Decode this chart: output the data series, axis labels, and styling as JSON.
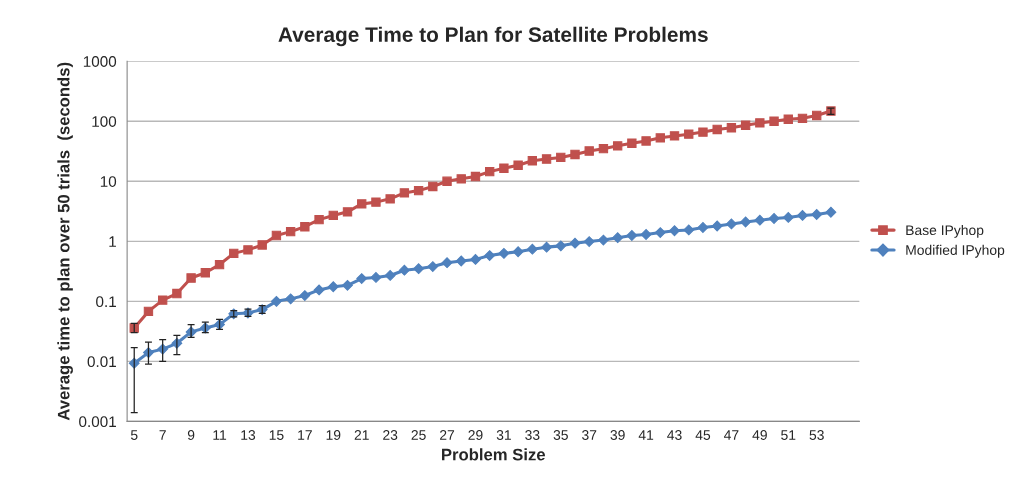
{
  "chart_data": {
    "type": "line",
    "title": "Average Time to Plan for Satellite Problems",
    "xlabel": "Problem Size",
    "ylabel": "Average time to plan over 50 trials  (seconds)",
    "categories": [
      "5",
      null,
      "7",
      null,
      "9",
      null,
      "11",
      null,
      "13",
      null,
      "15",
      null,
      "17",
      null,
      "19",
      null,
      "21",
      null,
      "23",
      null,
      "25",
      null,
      "27",
      null,
      "29",
      null,
      "31",
      null,
      "33",
      null,
      "35",
      null,
      "37",
      null,
      "39",
      null,
      "41",
      null,
      "43",
      null,
      "45",
      null,
      "47",
      null,
      "49",
      null,
      "51",
      null,
      "53",
      null
    ],
    "log": true,
    "ylim": [
      0.001,
      1000
    ],
    "yticks": [
      0.001,
      0.01,
      0.1,
      1,
      10,
      100,
      1000
    ],
    "grid": "y",
    "legend": "right",
    "series": [
      {
        "name": "Base IPyhop",
        "color": "#c0504d",
        "marker": "square",
        "values": [
          0.036,
          0.068,
          0.105,
          0.135,
          0.245,
          0.3,
          0.41,
          0.63,
          0.72,
          0.87,
          1.25,
          1.45,
          1.75,
          2.3,
          2.7,
          3.1,
          4.2,
          4.5,
          5.1,
          6.4,
          7.0,
          8.2,
          10,
          11,
          12,
          14.5,
          16.5,
          18.5,
          22,
          23.5,
          25,
          28,
          32,
          35,
          39,
          43,
          47,
          53,
          57,
          61,
          66,
          73,
          78,
          86,
          94,
          100,
          108,
          112,
          125,
          148
        ],
        "errors": [
          [
            0.03,
            0.043
          ],
          null,
          null,
          null,
          null,
          null,
          null,
          null,
          null,
          null,
          null,
          null,
          null,
          null,
          null,
          null,
          null,
          null,
          null,
          null,
          null,
          null,
          null,
          null,
          null,
          null,
          null,
          null,
          null,
          null,
          null,
          null,
          null,
          null,
          null,
          null,
          null,
          null,
          null,
          null,
          null,
          null,
          null,
          null,
          null,
          null,
          null,
          null,
          null,
          [
            130,
            165
          ]
        ]
      },
      {
        "name": "Modified IPyhop",
        "color": "#4f81bd",
        "marker": "diamond",
        "values": [
          0.0093,
          0.014,
          0.016,
          0.02,
          0.031,
          0.036,
          0.041,
          0.062,
          0.064,
          0.073,
          0.1,
          0.11,
          0.125,
          0.155,
          0.175,
          0.185,
          0.24,
          0.25,
          0.27,
          0.33,
          0.35,
          0.38,
          0.44,
          0.47,
          0.5,
          0.58,
          0.63,
          0.67,
          0.74,
          0.8,
          0.84,
          0.93,
          0.99,
          1.05,
          1.15,
          1.25,
          1.3,
          1.4,
          1.5,
          1.55,
          1.7,
          1.8,
          1.95,
          2.1,
          2.25,
          2.4,
          2.5,
          2.7,
          2.8,
          3.05
        ],
        "errors": [
          [
            0.0014,
            0.017
          ],
          [
            0.009,
            0.021
          ],
          [
            0.01,
            0.023
          ],
          [
            0.013,
            0.027
          ],
          [
            0.025,
            0.041
          ],
          [
            0.03,
            0.045
          ],
          [
            0.034,
            0.05
          ],
          [
            0.055,
            0.07
          ],
          [
            0.056,
            0.074
          ],
          [
            0.063,
            0.085
          ],
          null,
          null,
          null,
          null,
          null,
          null,
          null,
          null,
          null,
          null,
          null,
          null,
          null,
          null,
          null,
          null,
          null,
          null,
          null,
          null,
          null,
          null,
          null,
          null,
          null,
          null,
          null,
          null,
          null,
          null,
          null,
          null,
          null,
          null,
          null,
          null,
          null,
          null,
          null,
          null
        ]
      }
    ]
  }
}
